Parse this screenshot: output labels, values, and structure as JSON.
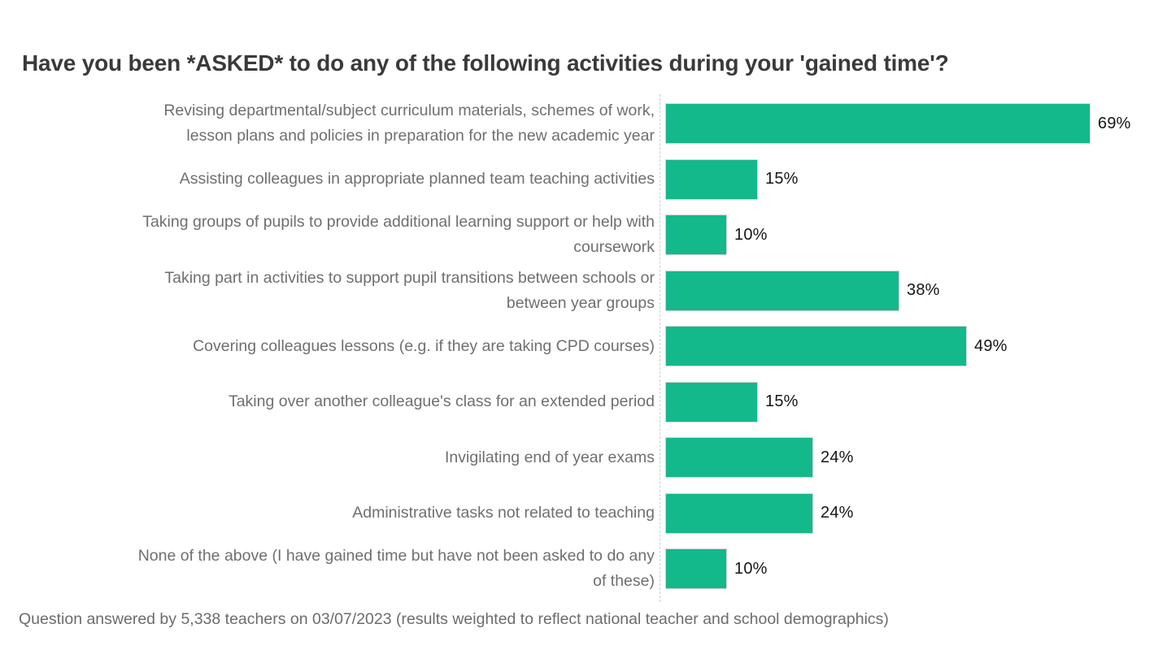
{
  "title": "Have you been *ASKED* to do any of the following activities during your 'gained time'?",
  "footnote": "Question answered by 5,338 teachers on 03/07/2023 (results weighted to reflect national teacher and school demographics)",
  "colors": {
    "bar": "#13b98a",
    "bar_border": "#d5d5d5",
    "category_label": "#6e6f72",
    "value_label": "#161616",
    "title": "#3a3a3a",
    "axis_line": "#cdcdcd",
    "background": "#ffffff"
  },
  "chart_data": {
    "type": "bar",
    "orientation": "horizontal",
    "title": "Have you been *ASKED* to do any of the following activities during your 'gained time'?",
    "categories": [
      "Revising departmental/subject curriculum materials, schemes of work,\nlesson plans and policies in preparation for the new academic year",
      "Assisting colleagues in appropriate planned team teaching activities",
      "Taking groups of pupils to provide additional learning support or help with\ncoursework",
      "Taking part in activities to support pupil transitions between schools or\nbetween year groups",
      "Covering colleagues lessons (e.g. if they are taking CPD courses)",
      "Taking over another colleague's class for an extended period",
      "Invigilating end of year exams",
      "Administrative tasks not related to teaching",
      "None of the above (I have gained time but have not been asked to do any\nof these)"
    ],
    "values": [
      69,
      15,
      10,
      38,
      49,
      15,
      24,
      24,
      10
    ],
    "value_labels": [
      "69%",
      "15%",
      "10%",
      "38%",
      "49%",
      "15%",
      "24%",
      "24%",
      "10%"
    ],
    "xlabel": "",
    "ylabel": "",
    "xlim": [
      0,
      82
    ],
    "grid": false,
    "legend": false,
    "baseline": "dashed-vertical-line"
  }
}
